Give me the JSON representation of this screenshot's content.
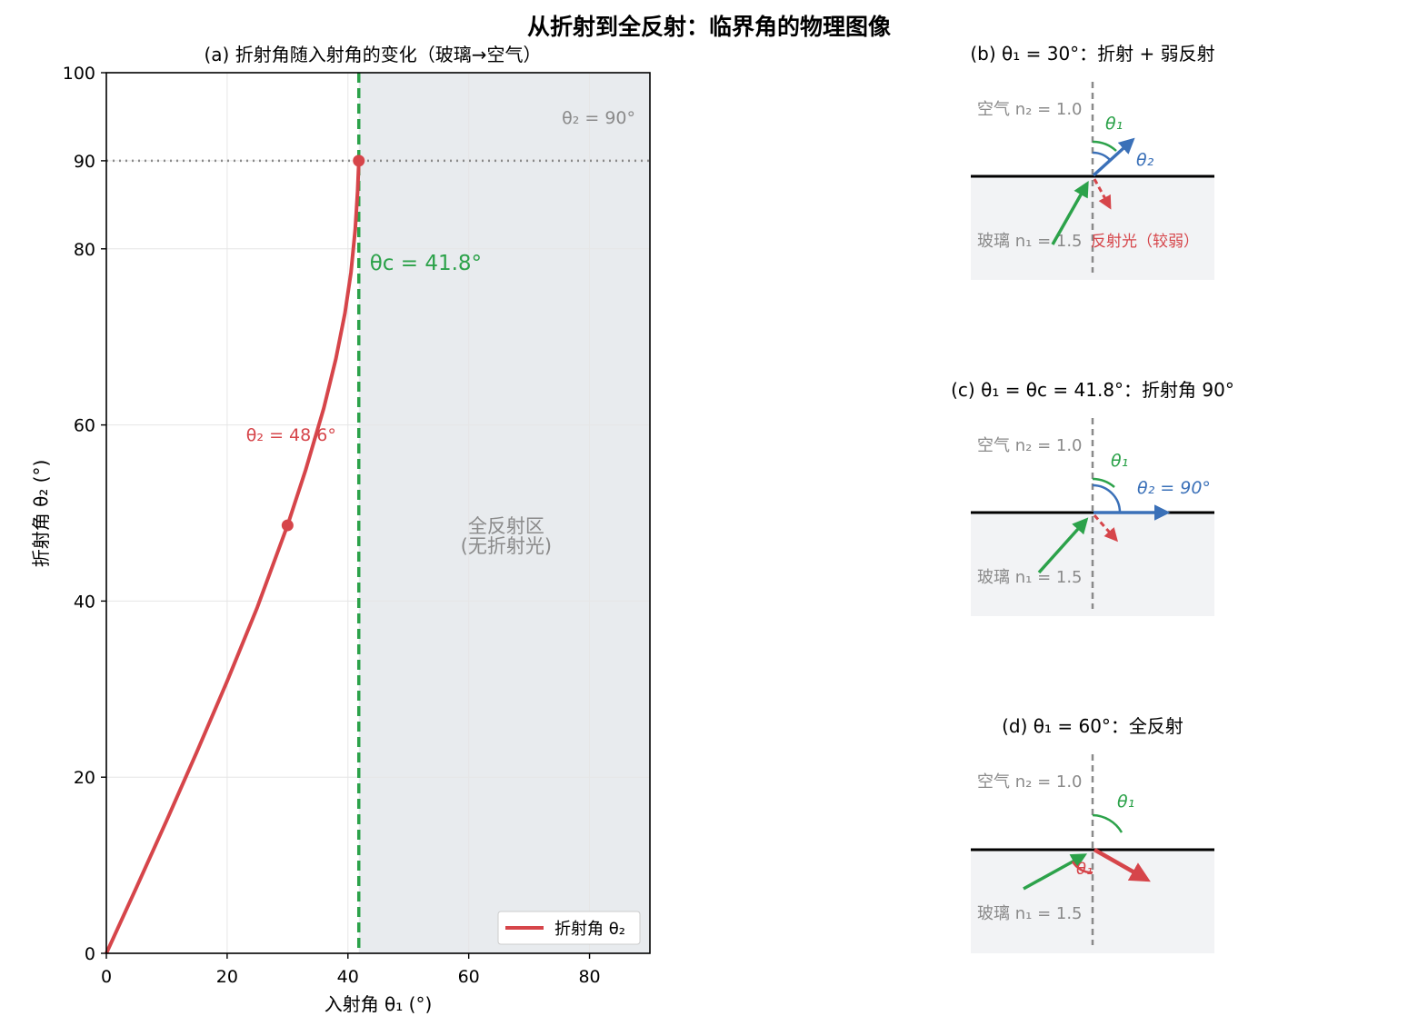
{
  "figure": {
    "title": "从折射到全反射：临界角的物理图像"
  },
  "colors": {
    "refraction": "#d6454a",
    "critical": "#2ca24a",
    "refracted_ray": "#3a70b8",
    "gray": "#8a8a8a",
    "tir_region": "#e8ebee",
    "glass": "#f2f3f5"
  },
  "chart_data": [
    {
      "type": "line",
      "title": "(a) 折射角随入射角的变化（玻璃→空气）",
      "xlabel": "入射角 θ₁ (°)",
      "ylabel": "折射角 θ₂ (°)",
      "xlim": [
        0,
        90
      ],
      "ylim": [
        0,
        100
      ],
      "x_ticks": [
        0,
        20,
        40,
        60,
        80
      ],
      "y_ticks": [
        0,
        20,
        40,
        60,
        80,
        90,
        100
      ],
      "grid": true,
      "n1": 1.5,
      "n2": 1.0,
      "series": [
        {
          "name": "折射角 θ₂",
          "x": [
            0,
            5,
            10,
            15,
            20,
            25,
            30,
            33,
            36,
            38,
            39.5,
            40.5,
            41.2,
            41.6,
            41.81
          ],
          "y": [
            0,
            7.5,
            15.1,
            22.9,
            30.9,
            39.3,
            48.6,
            54.9,
            61.9,
            67.5,
            72.7,
            77.3,
            82.2,
            86.5,
            90
          ]
        }
      ],
      "markers": [
        {
          "x": 30,
          "y": 48.6,
          "label": "θ₂ = 48.6°"
        },
        {
          "x": 41.8,
          "y": 90
        }
      ],
      "critical_line": {
        "x": 41.8,
        "label": "θc = 41.8°"
      },
      "h_line": {
        "y": 90,
        "label": "θ₂ = 90°"
      },
      "shaded_region": {
        "x": [
          41.8,
          90
        ],
        "label_line1": "全反射区",
        "label_line2": "(无折射光)"
      },
      "legend": {
        "position": "lower-right",
        "entries": [
          "折射角 θ₂"
        ]
      }
    }
  ],
  "panels": {
    "b": {
      "title": "(b) θ₁ = 30°：折射 + 弱反射",
      "air_label": "空气 n₂ = 1.0",
      "glass_label": "玻璃 n₁ = 1.5",
      "theta1_label": "θ₁",
      "theta2_label": "θ₂",
      "reflect_label": "反射光（较弱）",
      "incidence_deg": 30,
      "refraction_deg": 48.6
    },
    "c": {
      "title": "(c) θ₁ = θc = 41.8°：折射角 90°",
      "air_label": "空气 n₂ = 1.0",
      "glass_label": "玻璃 n₁ = 1.5",
      "theta1_label": "θ₁",
      "theta2_label": "θ₂ = 90°",
      "incidence_deg": 41.8,
      "refraction_deg": 90
    },
    "d": {
      "title": "(d) θ₁ = 60°：全反射",
      "air_label": "空气 n₂ = 1.0",
      "glass_label": "玻璃 n₁ = 1.5",
      "theta1_label": "θ₁",
      "theta1r_label": "θ₁",
      "incidence_deg": 60
    }
  }
}
